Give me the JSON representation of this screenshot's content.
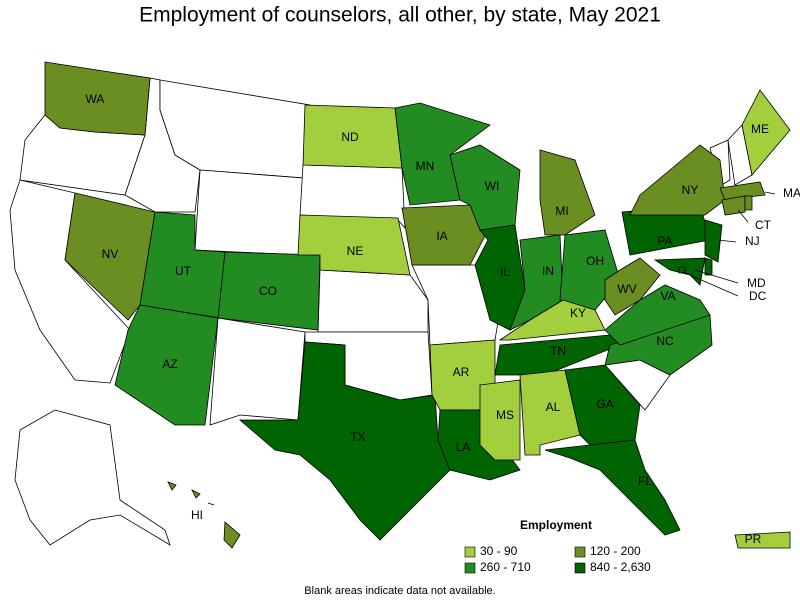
{
  "title": "Employment of counselors, all other, by state, May 2021",
  "legend": {
    "title": "Employment",
    "items": [
      {
        "label": "30 - 90",
        "color": "#a3cf3f"
      },
      {
        "label": "120 - 200",
        "color": "#6b8e23"
      },
      {
        "label": "260 - 710",
        "color": "#228b22"
      },
      {
        "label": "840 - 2,630",
        "color": "#006400"
      }
    ]
  },
  "states": [
    {
      "label": "WA",
      "color": "#6b8e23"
    },
    {
      "label": "NV",
      "color": "#6b8e23"
    },
    {
      "label": "UT",
      "color": "#228b22"
    },
    {
      "label": "CO",
      "color": "#228b22"
    },
    {
      "label": "AZ",
      "color": "#228b22"
    },
    {
      "label": "ND",
      "color": "#a3cf3f"
    },
    {
      "label": "NE",
      "color": "#a3cf3f"
    },
    {
      "label": "TX",
      "color": "#006400"
    },
    {
      "label": "MN",
      "color": "#228b22"
    },
    {
      "label": "IA",
      "color": "#6b8e23"
    },
    {
      "label": "AR",
      "color": "#a3cf3f"
    },
    {
      "label": "LA",
      "color": "#006400"
    },
    {
      "label": "WI",
      "color": "#228b22"
    },
    {
      "label": "IL",
      "color": "#006400"
    },
    {
      "label": "IN",
      "color": "#228b22"
    },
    {
      "label": "MI",
      "color": "#6b8e23"
    },
    {
      "label": "OH",
      "color": "#228b22"
    },
    {
      "label": "KY",
      "color": "#a3cf3f"
    },
    {
      "label": "TN",
      "color": "#006400"
    },
    {
      "label": "MS",
      "color": "#a3cf3f"
    },
    {
      "label": "AL",
      "color": "#a3cf3f"
    },
    {
      "label": "GA",
      "color": "#006400"
    },
    {
      "label": "FL",
      "color": "#006400"
    },
    {
      "label": "NC",
      "color": "#228b22"
    },
    {
      "label": "VA",
      "color": "#228b22"
    },
    {
      "label": "WV",
      "color": "#6b8e23"
    },
    {
      "label": "PA",
      "color": "#006400"
    },
    {
      "label": "NY",
      "color": "#6b8e23"
    },
    {
      "label": "ME",
      "color": "#a3cf3f"
    },
    {
      "label": "MA",
      "color": "#6b8e23"
    },
    {
      "label": "CT",
      "color": "#6b8e23"
    },
    {
      "label": null,
      "color": "#6b8e23"
    },
    {
      "label": "NJ",
      "color": "#006400"
    },
    {
      "label": null,
      "color": "#006400"
    },
    {
      "label": "MD",
      "color": "#006400"
    },
    {
      "label": "DC",
      "color": "#006400"
    },
    {
      "label": "HI",
      "color": "#6b8e23"
    },
    {
      "label": "PR",
      "color": "#a3cf3f"
    }
  ],
  "note": "Blank areas indicate data not available."
}
